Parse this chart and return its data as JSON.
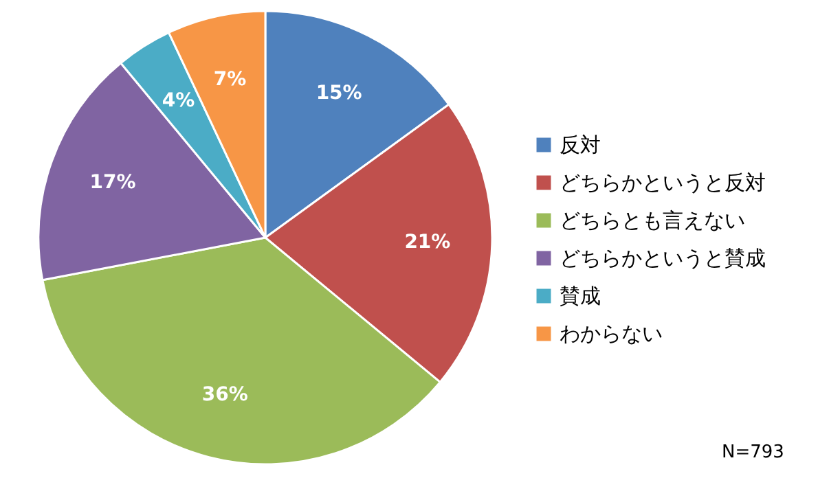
{
  "chart_data": {
    "type": "pie",
    "categories": [
      "反対",
      "どちらかというと反対",
      "どちらとも言えない",
      "どちらかというと賛成",
      "賛成",
      "わからない"
    ],
    "values": [
      15,
      21,
      36,
      17,
      4,
      7
    ],
    "colors": [
      "#4f81bd",
      "#c0504d",
      "#9bbb59",
      "#8064a2",
      "#4bacc6",
      "#f79646"
    ],
    "value_labels": [
      "15%",
      "21%",
      "36%",
      "17%",
      "4%",
      "7%"
    ],
    "legend": "right",
    "annotations": [
      "N=793"
    ]
  }
}
